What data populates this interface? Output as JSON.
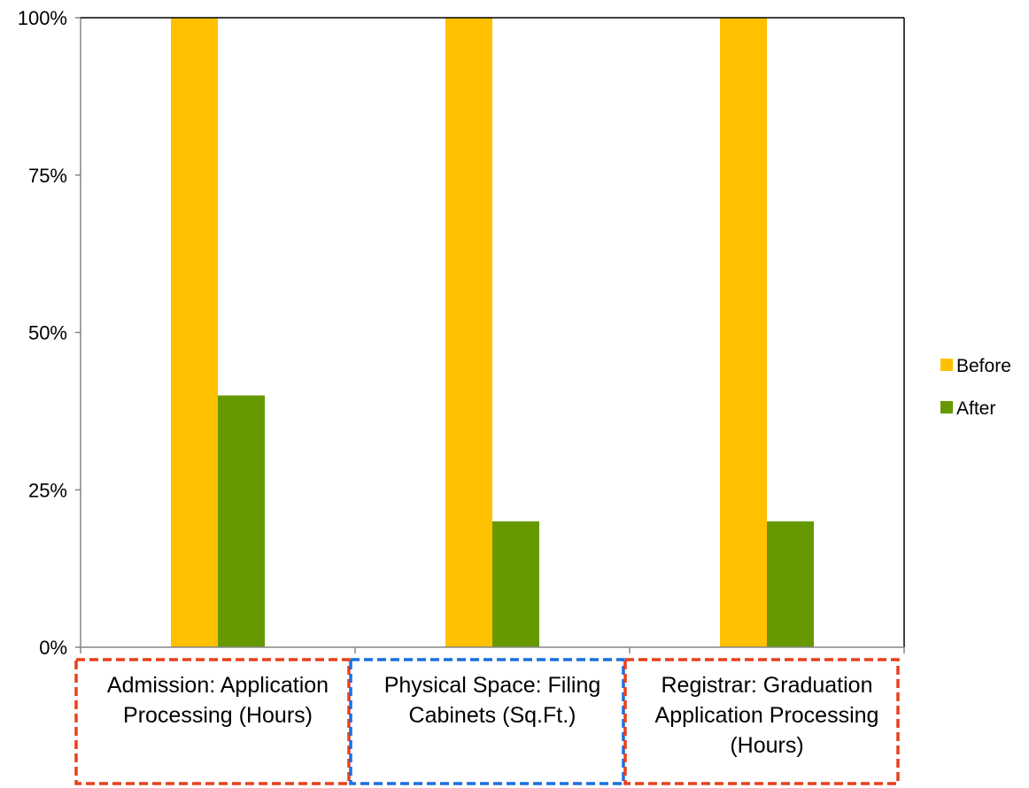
{
  "chart_data": {
    "type": "bar",
    "title": "",
    "xlabel": "",
    "ylabel": "",
    "ylim": [
      0,
      100
    ],
    "yticks": [
      "0%",
      "25%",
      "50%",
      "75%",
      "100%"
    ],
    "categories": [
      "Admission: Application Processing (Hours)",
      "Physical Space: Filing Cabinets (Sq.Ft.)",
      "Registrar: Graduation Application Processing (Hours)"
    ],
    "category_lines": [
      [
        "Admission: Application",
        "Processing (Hours)"
      ],
      [
        "Physical Space: Filing",
        "Cabinets (Sq.Ft.)"
      ],
      [
        "Registrar: Graduation",
        "Application Processing",
        "(Hours)"
      ]
    ],
    "series": [
      {
        "name": "Before",
        "values": [
          100,
          100,
          100
        ],
        "color": "#FFC000"
      },
      {
        "name": "After",
        "values": [
          40,
          20,
          20
        ],
        "color": "#669900"
      }
    ],
    "legend_position": "right",
    "grid": false,
    "annotation_boxes": [
      {
        "category_index": 0,
        "color": "#E8401C",
        "style": "dashed"
      },
      {
        "category_index": 1,
        "color": "#1A6FE0",
        "style": "dashed"
      },
      {
        "category_index": 2,
        "color": "#E8401C",
        "style": "dashed"
      }
    ]
  }
}
